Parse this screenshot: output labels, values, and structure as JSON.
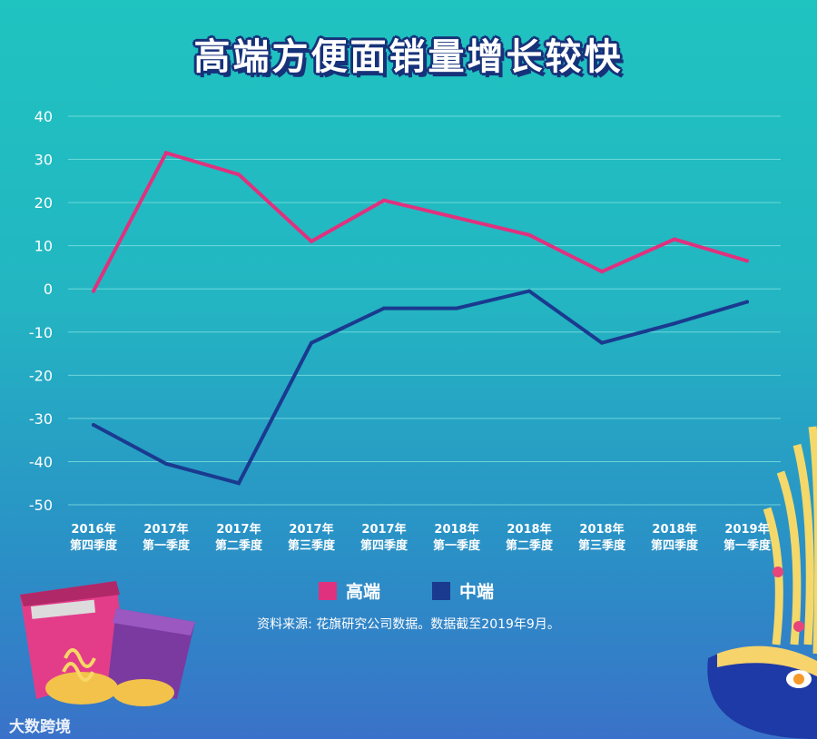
{
  "title": "高端方便面销量增长较快",
  "source_note": "资料来源: 花旗研究公司数据。数据截至2019年9月。",
  "watermark": "大数跨境",
  "colors": {
    "high_end": "#e0317e",
    "mid_range": "#1a3a8f",
    "grid": "#7fe0e0",
    "text": "#ffffff"
  },
  "chart_data": {
    "type": "line",
    "title": "高端方便面销量增长较快",
    "xlabel": "",
    "ylabel": "",
    "ylim": [
      -50,
      40
    ],
    "yticks": [
      "40",
      "30",
      "20",
      "10",
      "0",
      "-10",
      "-20",
      "-30",
      "-40",
      "-50"
    ],
    "grid": true,
    "legend_position": "bottom",
    "categories": [
      {
        "year": "2016年",
        "quarter": "第四季度"
      },
      {
        "year": "2017年",
        "quarter": "第一季度"
      },
      {
        "year": "2017年",
        "quarter": "第二季度"
      },
      {
        "year": "2017年",
        "quarter": "第三季度"
      },
      {
        "year": "2017年",
        "quarter": "第四季度"
      },
      {
        "year": "2018年",
        "quarter": "第一季度"
      },
      {
        "year": "2018年",
        "quarter": "第二季度"
      },
      {
        "year": "2018年",
        "quarter": "第三季度"
      },
      {
        "year": "2018年",
        "quarter": "第四季度"
      },
      {
        "year": "2019年",
        "quarter": "第一季度"
      }
    ],
    "series": [
      {
        "name": "高端",
        "color": "#e0317e",
        "values": [
          -0.5,
          31.5,
          26.5,
          11,
          20.5,
          16.5,
          12.5,
          4,
          11.5,
          6.5
        ]
      },
      {
        "name": "中端",
        "color": "#1a3a8f",
        "values": [
          -31.5,
          -40.5,
          -45,
          -12.5,
          -4.5,
          -4.5,
          -0.5,
          -12.5,
          -8,
          -3
        ]
      }
    ]
  }
}
